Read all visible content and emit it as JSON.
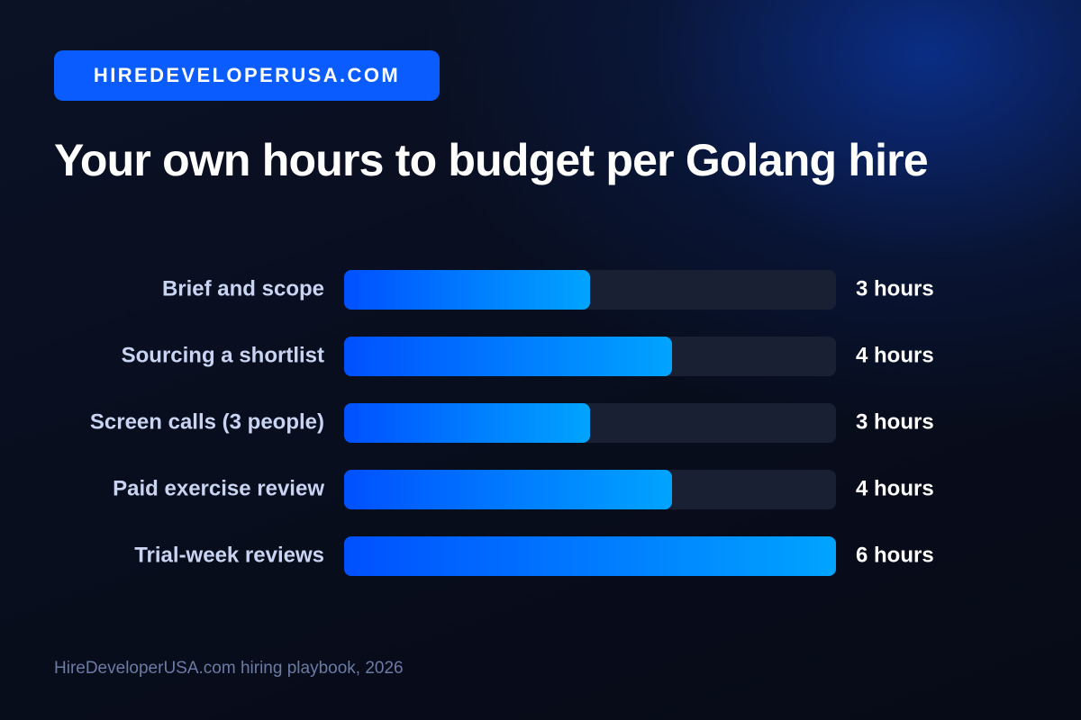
{
  "chart_data": {
    "type": "hbar",
    "badge": "HIREDEVELOPERUSA.COM",
    "title": "Your own hours to budget per Golang hire",
    "categories": [
      "Brief and scope",
      "Sourcing a shortlist",
      "Screen calls (3 people)",
      "Paid exercise review",
      "Trial-week reviews"
    ],
    "values": [
      3,
      4,
      3,
      4,
      6
    ],
    "value_labels": [
      "3 hours",
      "4 hours",
      "3 hours",
      "4 hours",
      "6 hours"
    ],
    "xlim": [
      0,
      6
    ],
    "gradient": [
      "#0050ff",
      "#00a4ff"
    ],
    "track_color": "#1a2034",
    "source": "HireDeveloperUSA.com hiring playbook, 2026"
  }
}
